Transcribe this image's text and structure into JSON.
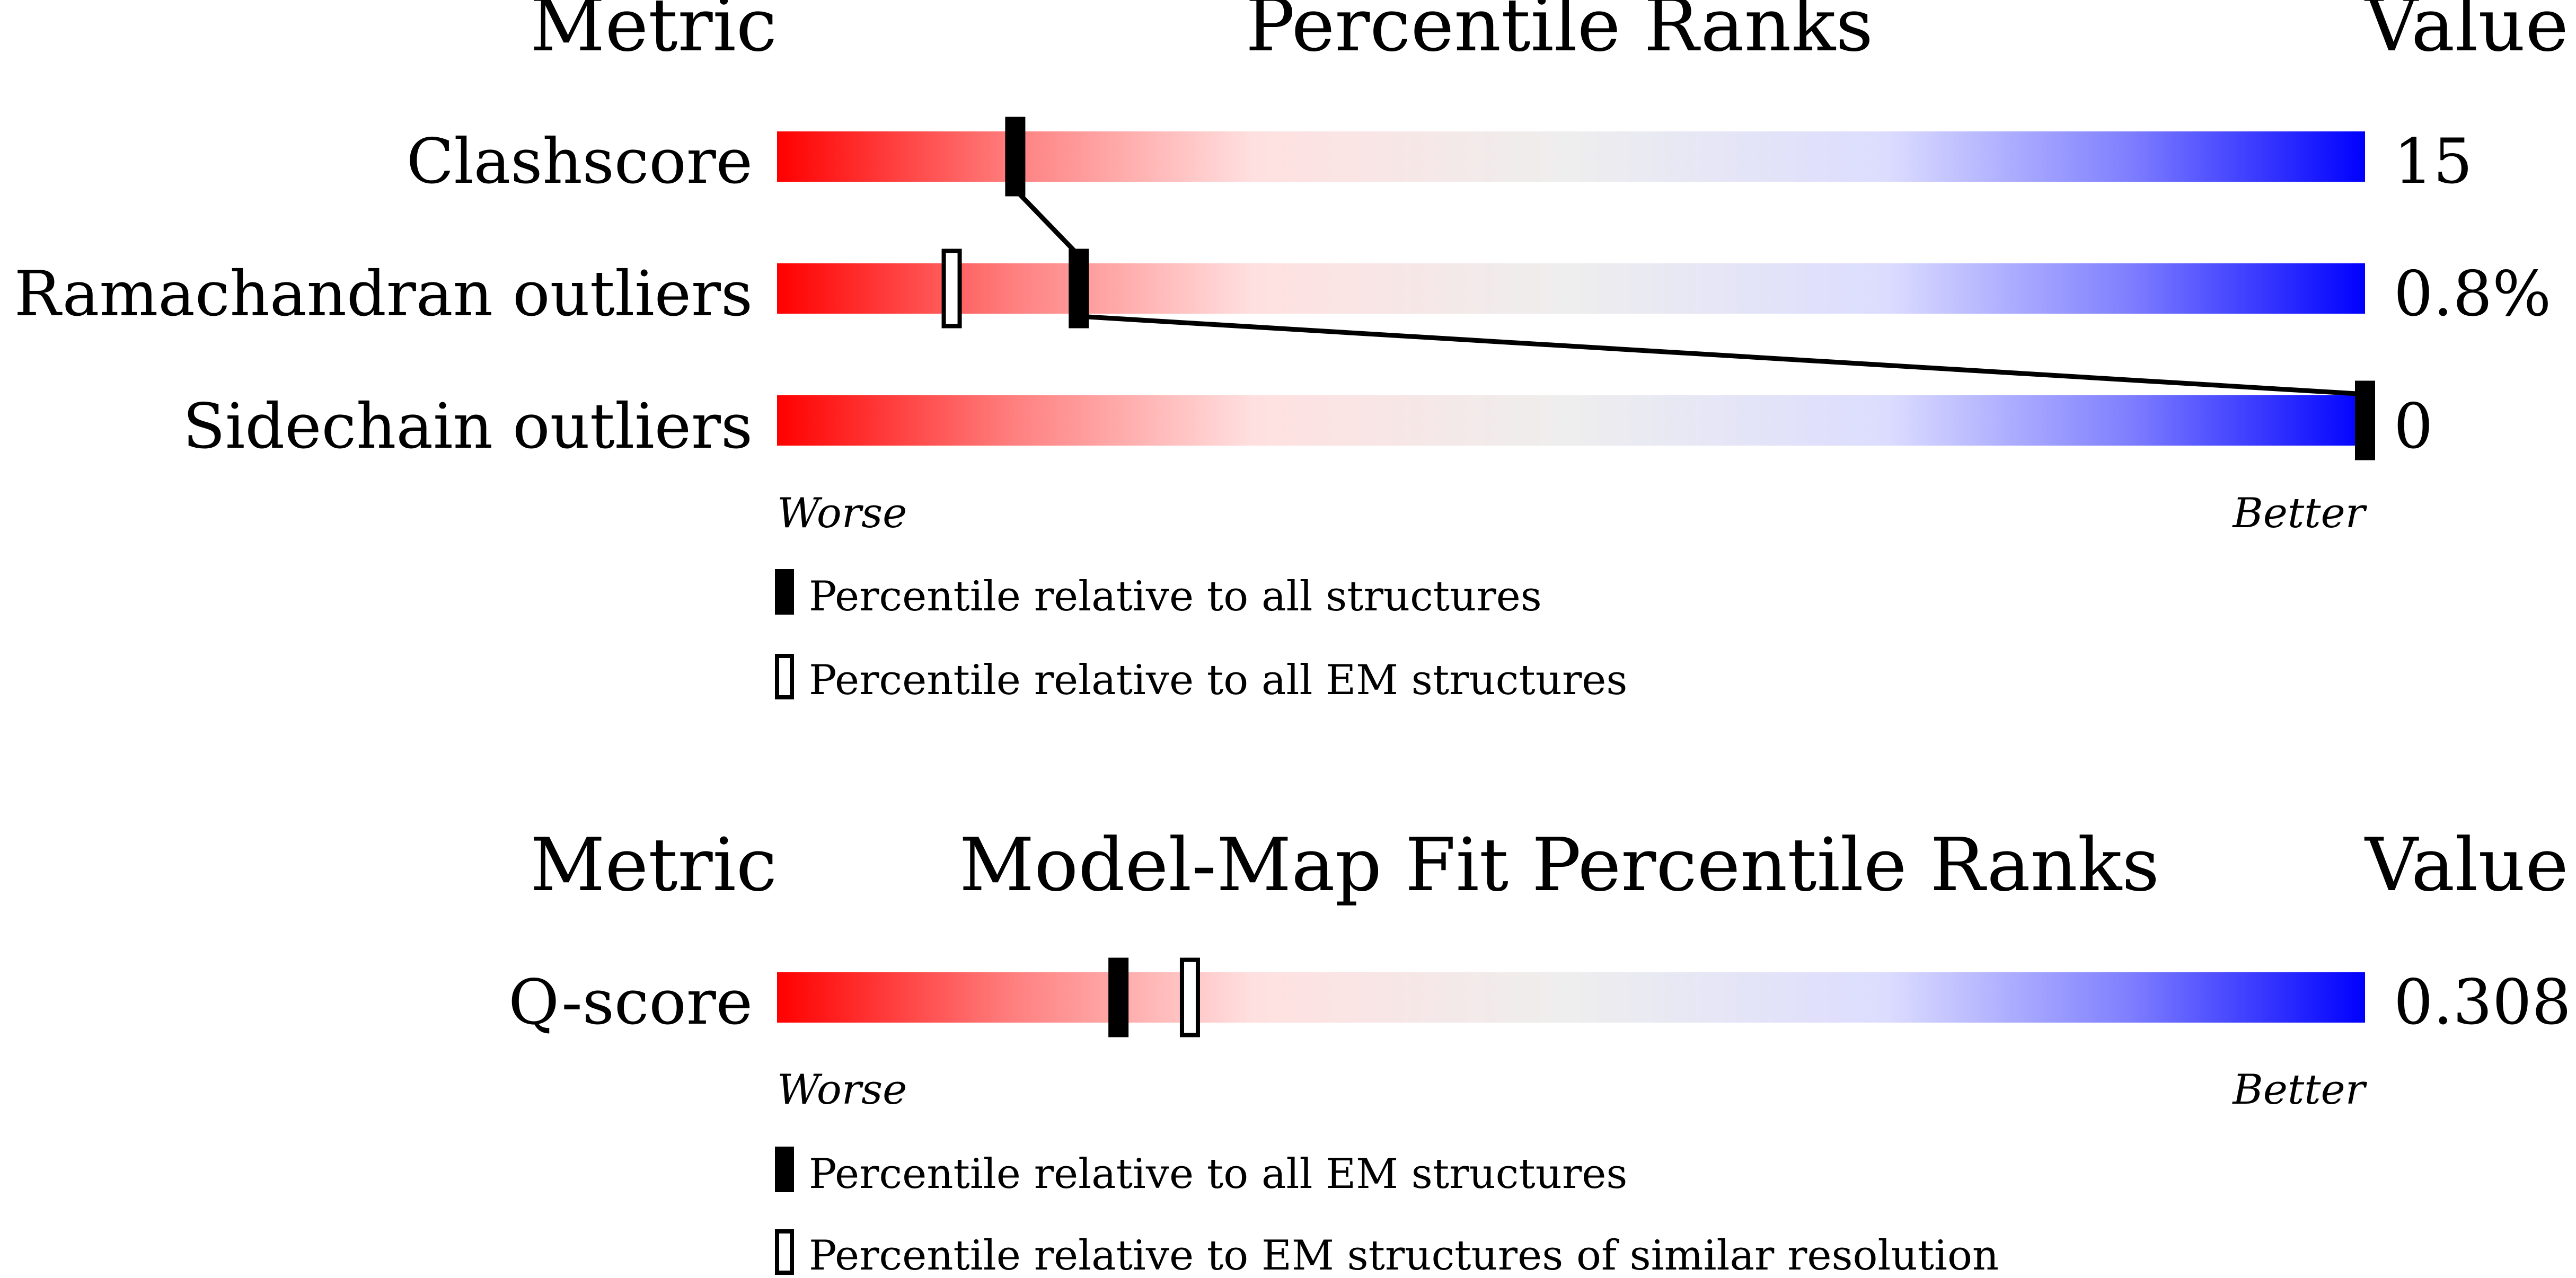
{
  "panels": [
    {
      "header_metric": "Metric",
      "header_title": "Percentile Ranks",
      "header_value": "Value",
      "worse_label": "Worse",
      "better_label": "Better",
      "legend": [
        {
          "marker": "filled",
          "text": "Percentile relative to all structures"
        },
        {
          "marker": "hollow",
          "text": "Percentile relative to all EM structures"
        }
      ],
      "connector": true
    },
    {
      "header_metric": "Metric",
      "header_title": "Model-Map Fit Percentile Ranks",
      "header_value": "Value",
      "worse_label": "Worse",
      "better_label": "Better",
      "legend": [
        {
          "marker": "filled",
          "text": "Percentile relative to all EM structures"
        },
        {
          "marker": "hollow",
          "text": "Percentile relative to EM structures of similar resolution"
        }
      ],
      "connector": false
    }
  ],
  "chart_data": [
    {
      "type": "bar",
      "xlim": [
        0,
        100
      ],
      "gradient_colors": [
        "#ff0000",
        "#eeeeee",
        "#0000ff"
      ],
      "metrics": [
        {
          "name": "Clashscore",
          "value": "15",
          "percentile_all": 15,
          "percentile_em": null
        },
        {
          "name": "Ramachandran outliers",
          "value": "0.8%",
          "percentile_all": 19,
          "percentile_em": 11
        },
        {
          "name": "Sidechain outliers",
          "value": "0",
          "percentile_all": 100,
          "percentile_em": null
        }
      ]
    },
    {
      "type": "bar",
      "xlim": [
        0,
        100
      ],
      "gradient_colors": [
        "#ff0000",
        "#eeeeee",
        "#0000ff"
      ],
      "metrics": [
        {
          "name": "Q-score",
          "value": "0.308",
          "percentile_all": 21.5,
          "percentile_em": 26
        }
      ]
    }
  ]
}
